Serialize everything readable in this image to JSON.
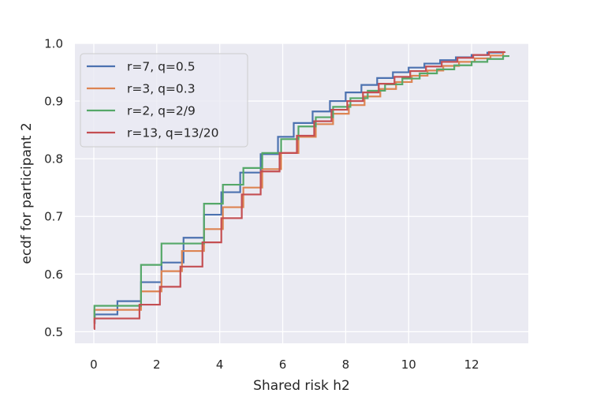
{
  "chart_data": {
    "type": "line",
    "step": true,
    "title": "",
    "xlabel": "Shared risk h2",
    "ylabel": "ecdf for participant 2",
    "xlim": [
      -0.6,
      13.8
    ],
    "ylim": [
      0.48,
      1.0
    ],
    "xticks": [
      0,
      2,
      4,
      6,
      8,
      10,
      12
    ],
    "yticks": [
      0.5,
      0.6,
      0.7,
      0.8,
      0.9,
      1.0
    ],
    "ytick_labels": [
      "0.5",
      "0.6",
      "0.7",
      "0.8",
      "0.9",
      "1.0"
    ],
    "grid": true,
    "legend_position": "upper-left",
    "series": [
      {
        "name": "r=7, q=0.5",
        "color": "#4c72b0",
        "x": [
          0,
          0.03,
          0.75,
          1.5,
          2.15,
          2.85,
          3.5,
          4.05,
          4.65,
          5.3,
          5.85,
          6.35,
          6.95,
          7.5,
          8.0,
          8.5,
          9.0,
          9.5,
          10.0,
          10.5,
          11.0,
          11.5,
          12.0,
          12.5,
          13.0
        ],
        "y": [
          0.515,
          0.53,
          0.553,
          0.586,
          0.62,
          0.663,
          0.703,
          0.742,
          0.776,
          0.808,
          0.838,
          0.862,
          0.882,
          0.9,
          0.915,
          0.928,
          0.94,
          0.95,
          0.958,
          0.965,
          0.971,
          0.976,
          0.98,
          0.984,
          0.986
        ]
      },
      {
        "name": "r=3, q=0.3",
        "color": "#dd8452",
        "x": [
          0,
          0.02,
          1.5,
          2.15,
          2.8,
          3.5,
          4.1,
          4.75,
          5.35,
          5.95,
          6.5,
          7.05,
          7.6,
          8.1,
          8.6,
          9.1,
          9.6,
          10.1,
          10.6,
          11.1,
          11.6,
          12.1,
          12.6,
          13.0
        ],
        "y": [
          0.515,
          0.538,
          0.57,
          0.605,
          0.64,
          0.678,
          0.716,
          0.75,
          0.782,
          0.81,
          0.838,
          0.86,
          0.878,
          0.893,
          0.908,
          0.921,
          0.933,
          0.944,
          0.953,
          0.961,
          0.968,
          0.974,
          0.979,
          0.984
        ]
      },
      {
        "name": "r=2, q=2/9",
        "color": "#55a868",
        "x": [
          0,
          0.02,
          1.5,
          2.15,
          3.5,
          4.1,
          4.75,
          5.35,
          5.95,
          6.5,
          7.05,
          7.6,
          8.15,
          8.7,
          9.25,
          9.8,
          10.35,
          10.9,
          11.45,
          12.0,
          12.5,
          13.0,
          13.2
        ],
        "y": [
          0.525,
          0.545,
          0.616,
          0.653,
          0.722,
          0.755,
          0.784,
          0.81,
          0.834,
          0.856,
          0.872,
          0.89,
          0.905,
          0.918,
          0.929,
          0.939,
          0.948,
          0.955,
          0.962,
          0.968,
          0.973,
          0.978,
          0.978
        ]
      },
      {
        "name": "r=13, q=13/20",
        "color": "#c44e52",
        "x": [
          0,
          0.02,
          1.45,
          2.1,
          2.75,
          3.45,
          4.05,
          4.7,
          5.3,
          5.9,
          6.45,
          7.0,
          7.55,
          8.05,
          8.55,
          9.05,
          9.55,
          10.05,
          10.55,
          11.05,
          11.55,
          12.05,
          12.55,
          13.05
        ],
        "y": [
          0.505,
          0.523,
          0.547,
          0.578,
          0.613,
          0.655,
          0.697,
          0.738,
          0.778,
          0.81,
          0.84,
          0.865,
          0.885,
          0.9,
          0.915,
          0.93,
          0.942,
          0.952,
          0.96,
          0.968,
          0.975,
          0.98,
          0.985,
          0.986
        ]
      }
    ]
  }
}
